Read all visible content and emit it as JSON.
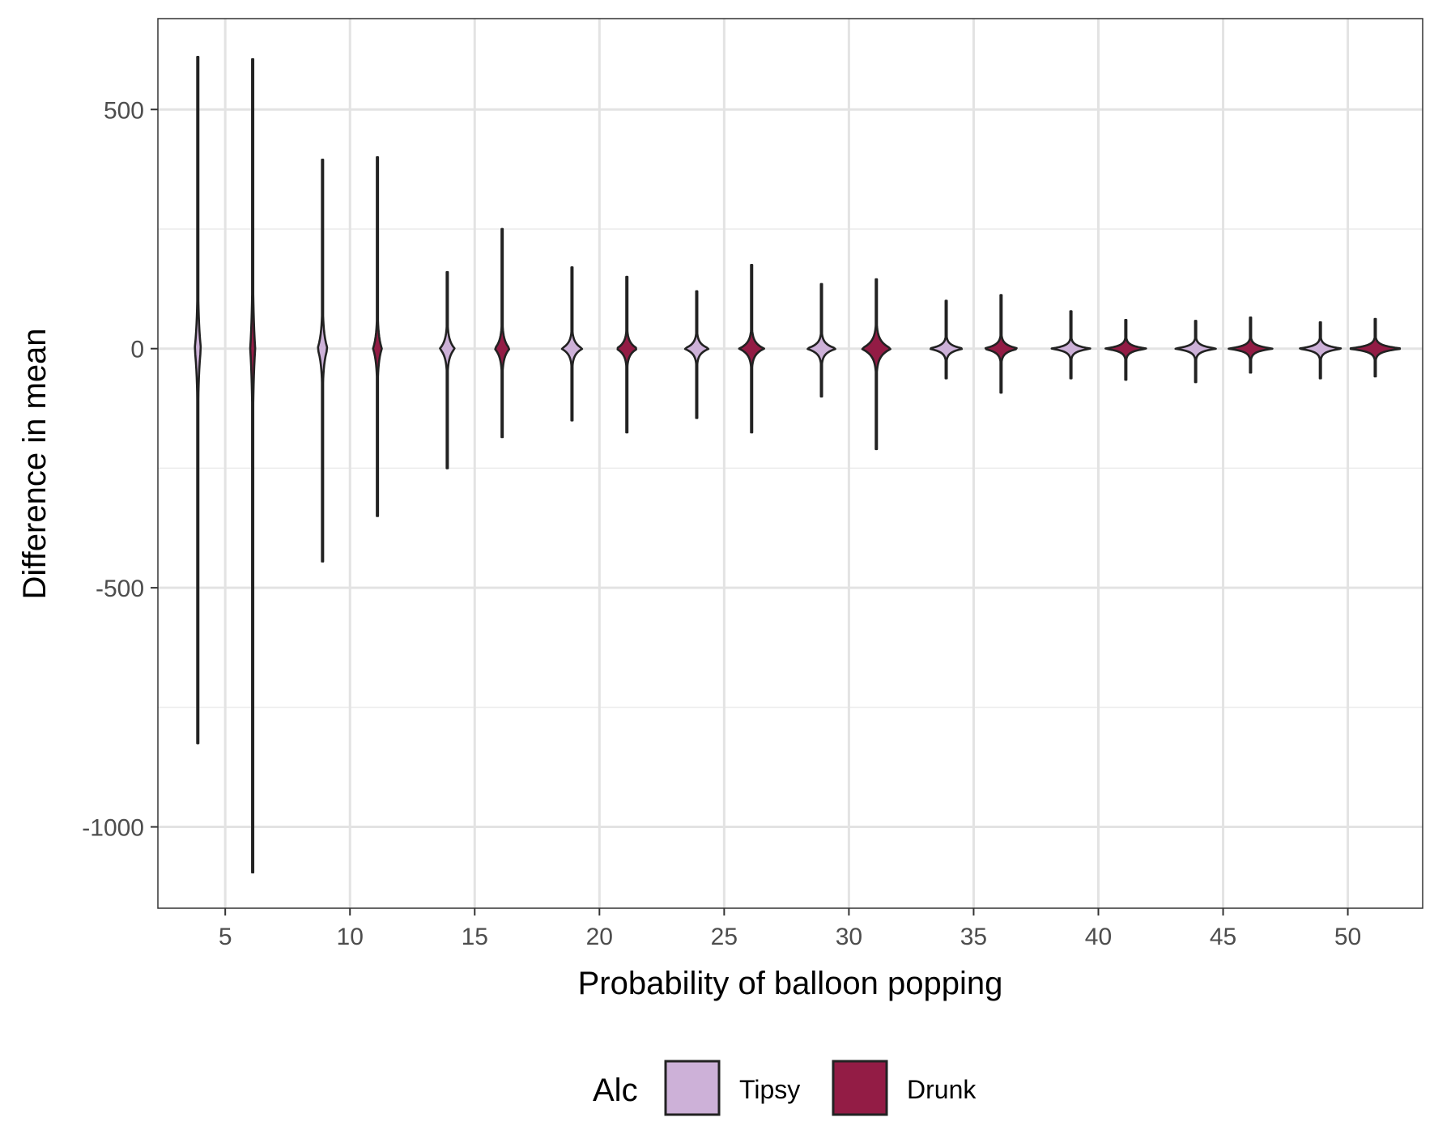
{
  "chart_data": {
    "type": "violin",
    "xlabel": "Probability of balloon popping",
    "ylabel": "Difference in mean",
    "x_ticks": [
      5,
      10,
      15,
      20,
      25,
      30,
      35,
      40,
      45,
      50
    ],
    "y_ticks": [
      500,
      0,
      -500,
      -1000
    ],
    "xlim": [
      2.3,
      53.0
    ],
    "ylim": [
      -1170,
      690
    ],
    "grid": true,
    "legend": {
      "title": "Alc",
      "position": "bottom",
      "entries": [
        {
          "label": "Tipsy",
          "color": "#CDB1D8"
        },
        {
          "label": "Drunk",
          "color": "#931C45"
        }
      ]
    },
    "series": [
      {
        "name": "Tipsy",
        "color": "#CDB1D8",
        "violins": [
          {
            "x": 3.9,
            "min": -825,
            "max": 610,
            "width": 0.25
          },
          {
            "x": 8.9,
            "min": -445,
            "max": 395,
            "width": 0.4
          },
          {
            "x": 13.9,
            "min": -250,
            "max": 160,
            "width": 0.6
          },
          {
            "x": 18.9,
            "min": -150,
            "max": 170,
            "width": 0.85
          },
          {
            "x": 23.9,
            "min": -145,
            "max": 120,
            "width": 1.0
          },
          {
            "x": 28.9,
            "min": -100,
            "max": 135,
            "width": 1.2
          },
          {
            "x": 33.9,
            "min": -62,
            "max": 100,
            "width": 1.4
          },
          {
            "x": 38.9,
            "min": -62,
            "max": 78,
            "width": 1.6
          },
          {
            "x": 43.9,
            "min": -70,
            "max": 58,
            "width": 1.7
          },
          {
            "x": 48.9,
            "min": -62,
            "max": 55,
            "width": 1.75
          }
        ]
      },
      {
        "name": "Drunk",
        "color": "#931C45",
        "violins": [
          {
            "x": 6.1,
            "min": -1095,
            "max": 605,
            "width": 0.2
          },
          {
            "x": 11.1,
            "min": -350,
            "max": 400,
            "width": 0.35
          },
          {
            "x": 16.1,
            "min": -185,
            "max": 250,
            "width": 0.6
          },
          {
            "x": 21.1,
            "min": -175,
            "max": 150,
            "width": 0.85
          },
          {
            "x": 26.1,
            "min": -175,
            "max": 175,
            "width": 1.0
          },
          {
            "x": 31.1,
            "min": -210,
            "max": 145,
            "width": 1.2
          },
          {
            "x": 36.1,
            "min": -92,
            "max": 112,
            "width": 1.4
          },
          {
            "x": 41.1,
            "min": -65,
            "max": 60,
            "width": 1.7
          },
          {
            "x": 46.1,
            "min": -50,
            "max": 65,
            "width": 1.8
          },
          {
            "x": 51.1,
            "min": -58,
            "max": 62,
            "width": 2.2
          }
        ]
      }
    ]
  }
}
